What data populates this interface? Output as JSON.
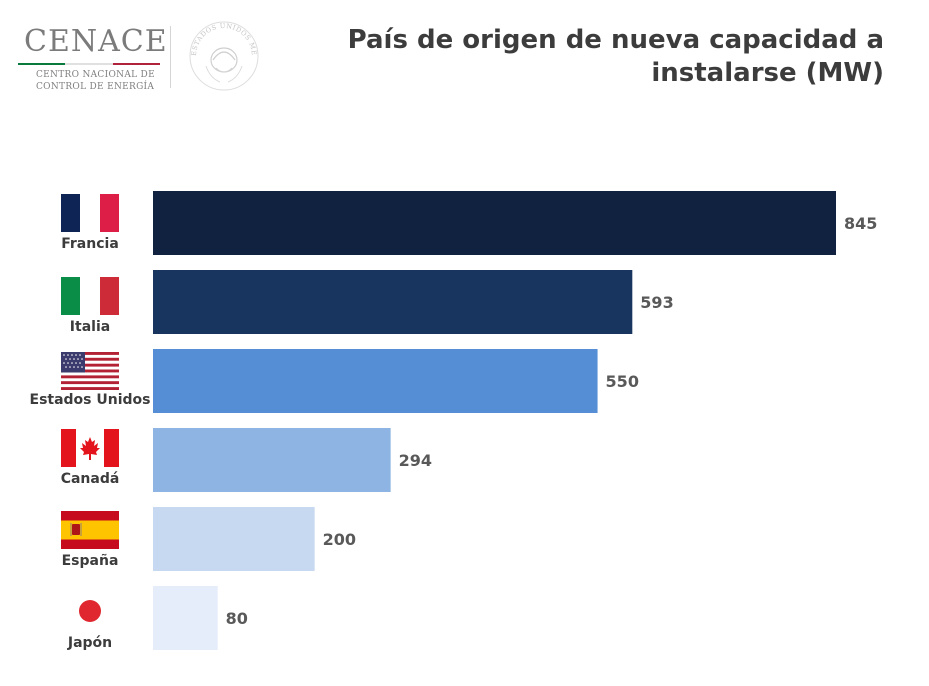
{
  "logo": {
    "wordmark": "CENACE",
    "subtitle_line1": "CENTRO NACIONAL DE",
    "subtitle_line2": "CONTROL DE ENERGÍA",
    "stripe_colors": [
      "#0a7a3c",
      "#e0e0e0",
      "#b0213a"
    ],
    "seal_text": "ESTADOS UNIDOS MEXICANOS"
  },
  "chart_data": {
    "type": "bar",
    "orientation": "horizontal",
    "title_lines": [
      "País de origen de nueva capacidad a",
      "instalarse (MW)"
    ],
    "categories": [
      "Francia",
      "Italia",
      "Estados Unidos",
      "Canadá",
      "España",
      "Japón"
    ],
    "values": [
      845,
      593,
      550,
      294,
      200,
      80
    ],
    "value_labels": [
      "845",
      "593",
      "550",
      "294",
      "200",
      "80"
    ],
    "bar_colors": [
      "#10223f",
      "#17355f",
      "#558ed5",
      "#8db4e2",
      "#c6d9f0",
      "#e4edf9"
    ],
    "flag_icons": [
      "france-flag-icon",
      "italy-flag-icon",
      "usa-flag-icon",
      "canada-flag-icon",
      "spain-flag-icon",
      "japan-flag-icon"
    ],
    "xlim": [
      0,
      845
    ],
    "grid": false,
    "legend": "none"
  }
}
